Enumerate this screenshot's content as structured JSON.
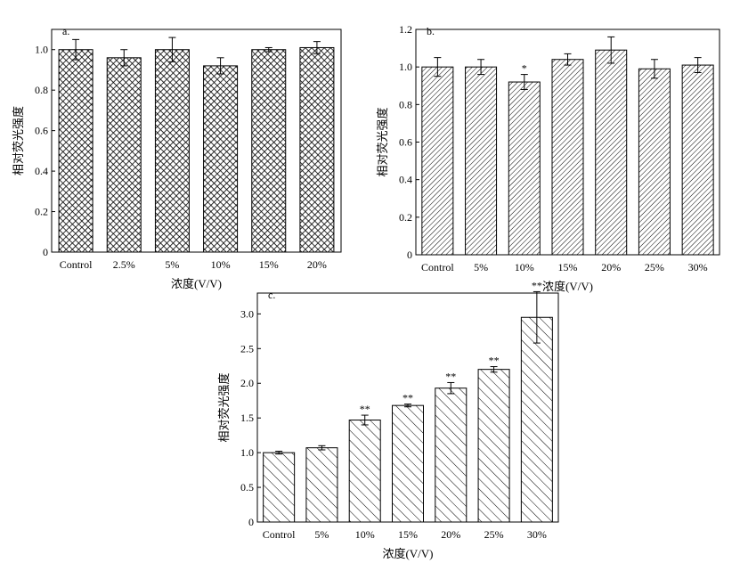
{
  "chart_data": [
    {
      "panel": "a.",
      "type": "bar",
      "categories": [
        "Control",
        "2.5%",
        "5%",
        "10%",
        "15%",
        "20%"
      ],
      "values": [
        1.0,
        0.96,
        1.0,
        0.92,
        1.0,
        1.01
      ],
      "errors": [
        0.05,
        0.04,
        0.06,
        0.04,
        0.01,
        0.03
      ],
      "significance": [
        "",
        "",
        "",
        "",
        "",
        ""
      ],
      "ylabel": "相对荧光强度",
      "xlabel": "浓度(V/V)",
      "ylim": [
        0,
        1.1
      ],
      "yticks": [
        "0",
        "0.2",
        "0.4",
        "0.6",
        "0.8",
        "1.0"
      ],
      "pattern": "crosshatch"
    },
    {
      "panel": "b.",
      "type": "bar",
      "categories": [
        "Control",
        "5%",
        "10%",
        "15%",
        "20%",
        "25%",
        "30%"
      ],
      "values": [
        1.0,
        1.0,
        0.92,
        1.04,
        1.09,
        0.99,
        1.01
      ],
      "errors": [
        0.05,
        0.04,
        0.04,
        0.03,
        0.07,
        0.05,
        0.04
      ],
      "significance": [
        "",
        "",
        "*",
        "",
        "",
        "",
        ""
      ],
      "ylabel": "相对荧光强度",
      "xlabel": "浓度(V/V)",
      "ylim": [
        0,
        1.2
      ],
      "yticks": [
        "0",
        "0.2",
        "0.4",
        "0.6",
        "0.8",
        "1.0",
        "1.2"
      ],
      "pattern": "diag-dense"
    },
    {
      "panel": "c.",
      "type": "bar",
      "categories": [
        "Control",
        "5%",
        "10%",
        "15%",
        "20%",
        "25%",
        "30%"
      ],
      "values": [
        1.0,
        1.07,
        1.47,
        1.68,
        1.93,
        2.2,
        2.95
      ],
      "errors": [
        0.02,
        0.03,
        0.07,
        0.02,
        0.08,
        0.04,
        0.37
      ],
      "significance": [
        "",
        "",
        "**",
        "**",
        "**",
        "**",
        "**"
      ],
      "ylabel": "相对荧光强度",
      "xlabel": "浓度(V/V)",
      "ylim": [
        0,
        3.3
      ],
      "yticks": [
        "0",
        "0.5",
        "1.0",
        "1.5",
        "2.0",
        "2.5",
        "3.0"
      ],
      "pattern": "diag-wide"
    }
  ]
}
